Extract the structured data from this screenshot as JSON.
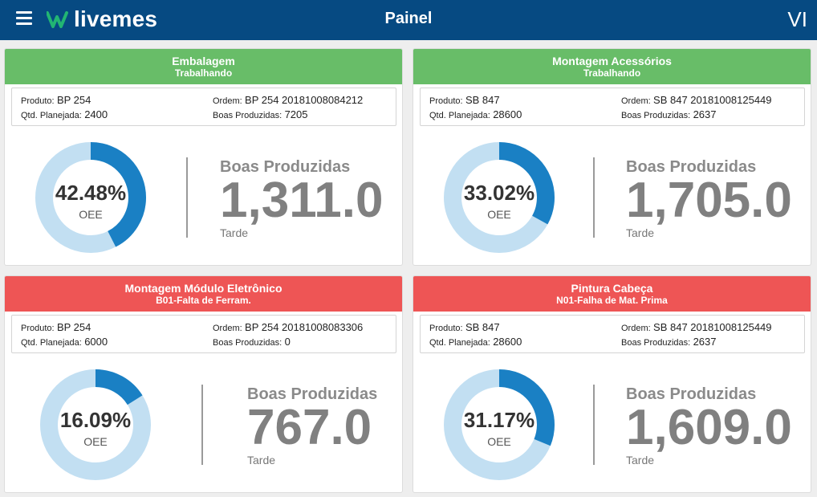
{
  "header": {
    "title": "Painel",
    "logo_text": "livemes",
    "user_initials": "VI",
    "icons": [
      "menu-icon",
      "livemes-logo-icon"
    ]
  },
  "colors": {
    "header_bg": "#064a82",
    "status_ok": "#68bd68",
    "status_stop": "#ee5555",
    "donut_fill": "#1a80c4",
    "donut_track": "#c2dff2"
  },
  "labels": {
    "produto": "Produto:",
    "qtd_planejada": "Qtd. Planejada:",
    "ordem": "Ordem:",
    "boas_produzidas": "Boas Produzidas:",
    "oee": "OEE",
    "metric_title": "Boas Produzidas"
  },
  "cards": [
    {
      "title": "Embalagem",
      "status": "Trabalhando",
      "status_color": "green",
      "produto": "BP 254",
      "qtd_planejada": "2400",
      "ordem": "BP 254 20181008084212",
      "boas_produzidas": "7205",
      "oee_text": "42.48%",
      "oee_value": 42.48,
      "metric_value": "1,311.0",
      "shift": "Tarde"
    },
    {
      "title": "Montagem Acessórios",
      "status": "Trabalhando",
      "status_color": "green",
      "produto": "SB 847",
      "qtd_planejada": "28600",
      "ordem": "SB 847 20181008125449",
      "boas_produzidas": "2637",
      "oee_text": "33.02%",
      "oee_value": 33.02,
      "metric_value": "1,705.0",
      "shift": "Tarde"
    },
    {
      "title": "Montagem Módulo Eletrônico",
      "status": "B01-Falta de Ferram.",
      "status_color": "red",
      "produto": "BP 254",
      "qtd_planejada": "6000",
      "ordem": "BP 254 20181008083306",
      "boas_produzidas": "0",
      "oee_text": "16.09%",
      "oee_value": 16.09,
      "metric_value": "767.0",
      "shift": "Tarde"
    },
    {
      "title": "Pintura Cabeça",
      "status": "N01-Falha de Mat. Prima",
      "status_color": "red",
      "produto": "SB 847",
      "qtd_planejada": "28600",
      "ordem": "SB 847 20181008125449",
      "boas_produzidas": "2637",
      "oee_text": "31.17%",
      "oee_value": 31.17,
      "metric_value": "1,609.0",
      "shift": "Tarde"
    }
  ]
}
